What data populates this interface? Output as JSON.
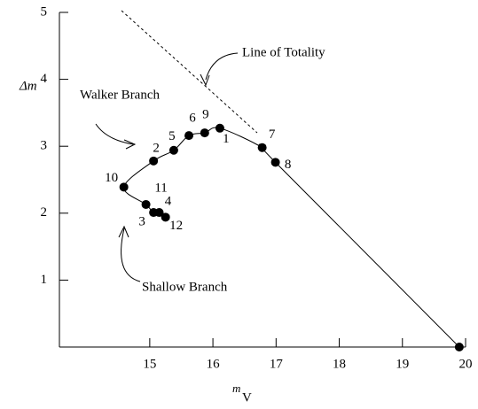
{
  "chart_data": {
    "type": "scatter",
    "y_label": "Δm",
    "x_label": "m",
    "x_label_sub": "V",
    "annotations": [
      "Line of Totality",
      "Walker Branch",
      "Shallow Branch"
    ],
    "point_labels": [
      "12",
      "4",
      "3",
      "11",
      "10",
      "2",
      "5",
      "6",
      "9",
      "1",
      "7",
      "8",
      null
    ],
    "x": [
      15.25,
      15.15,
      15.06,
      14.94,
      14.59,
      15.06,
      15.38,
      15.62,
      15.87,
      16.11,
      16.78,
      16.99,
      19.9
    ],
    "values": [
      1.94,
      2.01,
      2.01,
      2.13,
      2.39,
      2.78,
      2.94,
      3.16,
      3.2,
      3.27,
      2.98,
      2.76,
      0
    ],
    "color": "#000000",
    "xlim": [
      13.57,
      20
    ],
    "xticks": [
      15,
      16,
      17,
      18,
      19,
      20
    ],
    "ylim": [
      0,
      5
    ],
    "yticks": [
      1,
      2,
      3,
      4,
      5
    ]
  }
}
